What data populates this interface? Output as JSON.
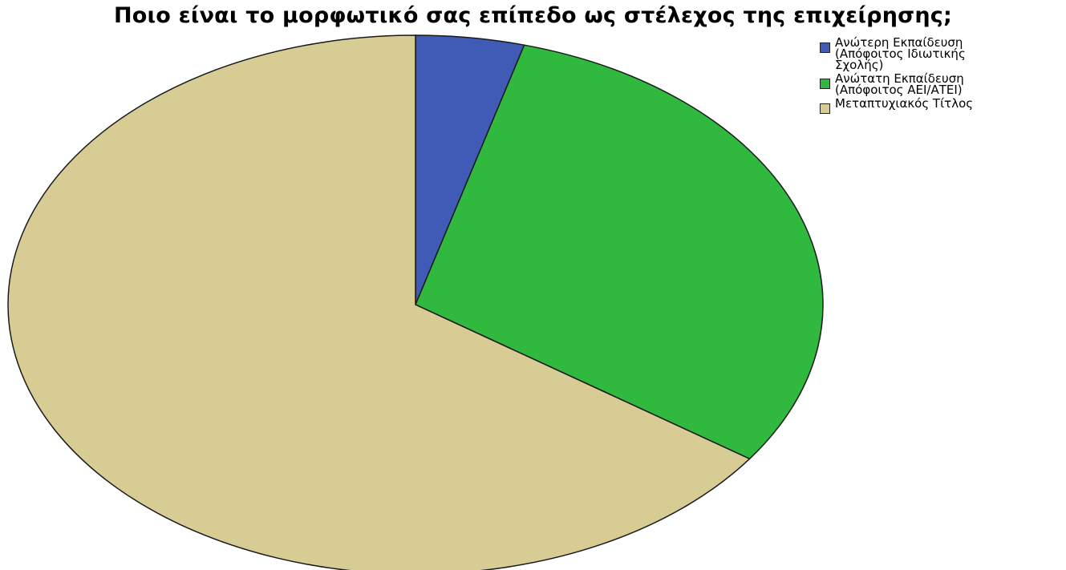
{
  "chart_data": {
    "type": "pie",
    "title": "Ποιο είναι το μορφωτικό σας επίπεδο ως στέλεχος της επιχείρησης;",
    "slices": [
      {
        "label": "Ανώτερη Εκπαίδευση\n(Απόφοιτος Ιδιωτικής\nΣχολής)",
        "value": 4.3,
        "color": "#3f5bb5"
      },
      {
        "label": "Ανώτατη Εκπαίδευση\n(Απόφοιτος ΑΕΙ/ΑΤΕΙ)",
        "value": 30.4,
        "color": "#31b83e"
      },
      {
        "label": "Μεταπτυχιακός Τίτλος",
        "value": 65.3,
        "color": "#d8cc95"
      }
    ],
    "start": "12 o'clock",
    "direction": "clockwise",
    "legend_position": "top-right"
  }
}
